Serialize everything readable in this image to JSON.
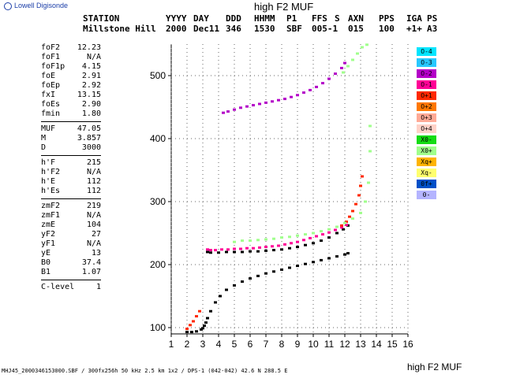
{
  "logo": {
    "text": "Lowell Digisonde",
    "icon": "globe-icon"
  },
  "top_title": "high F2 MUF",
  "header": {
    "columns": [
      {
        "label": "STATION",
        "value": "Millstone Hill"
      },
      {
        "label": "YYYY",
        "value": "2000"
      },
      {
        "label": "DAY",
        "value": "Dec11"
      },
      {
        "label": "DDD",
        "value": "346"
      },
      {
        "label": "HHMM",
        "value": "1530"
      },
      {
        "label": "P1",
        "value": "SBF"
      },
      {
        "label": "FFS",
        "value": "005-1"
      },
      {
        "label": "S",
        "value": ""
      },
      {
        "label": "AXN",
        "value": "015"
      },
      {
        "label": "PPS",
        "value": "100"
      },
      {
        "label": "IGA",
        "value": "+1+"
      },
      {
        "label": "PS",
        "value": "A3"
      }
    ]
  },
  "params": [
    {
      "label": "foF2",
      "value": "12.23"
    },
    {
      "label": "foF1",
      "value": "N/A"
    },
    {
      "label": "foF1p",
      "value": "4.15"
    },
    {
      "label": "foE",
      "value": "2.91"
    },
    {
      "label": "foEp",
      "value": "2.92"
    },
    {
      "label": "fxI",
      "value": "13.15"
    },
    {
      "label": "foEs",
      "value": "2.90"
    },
    {
      "label": "fmin",
      "value": "1.80"
    },
    {
      "sep": true
    },
    {
      "label": "MUF",
      "value": "47.05"
    },
    {
      "label": "M",
      "value": "3.857"
    },
    {
      "label": "D",
      "value": "3000"
    },
    {
      "sep": true
    },
    {
      "label": "h'F",
      "value": "215"
    },
    {
      "label": "h'F2",
      "value": "N/A"
    },
    {
      "label": "h'E",
      "value": "112"
    },
    {
      "label": "h'Es",
      "value": "112"
    },
    {
      "sep": true
    },
    {
      "label": "zmF2",
      "value": "219"
    },
    {
      "label": "zmF1",
      "value": "N/A"
    },
    {
      "label": "zmE",
      "value": "104"
    },
    {
      "label": "yF2",
      "value": "27"
    },
    {
      "label": "yF1",
      "value": "N/A"
    },
    {
      "label": "yE",
      "value": "13"
    },
    {
      "label": "B0",
      "value": "37.4"
    },
    {
      "label": "B1",
      "value": "1.07"
    },
    {
      "sep": true
    },
    {
      "label": "C-level",
      "value": "1"
    }
  ],
  "legend": [
    {
      "label": "O-4",
      "color": "#00e5ff"
    },
    {
      "label": "O-3",
      "color": "#28c8ff"
    },
    {
      "label": "O-2",
      "color": "#b400c8"
    },
    {
      "label": "O-1",
      "color": "#ff0096"
    },
    {
      "label": "O+1",
      "color": "#ff2800"
    },
    {
      "label": "O+2",
      "color": "#ff7800"
    },
    {
      "label": "O+3",
      "color": "#ffaa96"
    },
    {
      "label": "O+4",
      "color": "#ffd2c8"
    },
    {
      "label": "X0-",
      "color": "#14dc14"
    },
    {
      "label": "X0+",
      "color": "#a0ff8c"
    },
    {
      "label": "Xq+",
      "color": "#ffb400"
    },
    {
      "label": "Xq-",
      "color": "#ffff6e"
    },
    {
      "label": "0f+",
      "color": "#0050c8"
    },
    {
      "label": "0-",
      "color": "#b4b4ff"
    }
  ],
  "chart_data": {
    "type": "scatter",
    "title": "high F2 MUF",
    "xlabel": "",
    "ylabel": "",
    "xlim": [
      1,
      16
    ],
    "ylim": [
      90,
      550
    ],
    "x_ticks": [
      "1",
      "2",
      "3",
      "4",
      "5",
      "6",
      "7",
      "8",
      "9",
      "10",
      "11",
      "12",
      "13",
      "14",
      "15",
      "16"
    ],
    "y_ticks": [
      "100",
      "200",
      "300",
      "400",
      "500"
    ],
    "grid": true,
    "series": [
      {
        "name": "",
        "color": "#000000",
        "x": [
          2.0,
          2.3,
          2.6,
          2.9,
          3.0,
          3.1,
          3.2,
          3.3,
          3.5,
          3.8,
          4.1,
          4.5,
          5.0,
          5.5,
          6.0,
          6.5,
          7.0,
          7.5,
          8.0,
          8.5,
          9.0,
          9.5,
          10.0,
          10.5,
          11.0,
          11.5,
          12.0,
          12.2
        ],
        "y": [
          93,
          93,
          94,
          97,
          99,
          103,
          108,
          115,
          126,
          140,
          150,
          160,
          167,
          173,
          178,
          182,
          186,
          189,
          192,
          195,
          198,
          201,
          204,
          207,
          210,
          213,
          216,
          218
        ]
      },
      {
        "name": "",
        "color": "#000000",
        "x": [
          3.3,
          3.5,
          4.0,
          4.5,
          5.0,
          5.5,
          6.0,
          6.5,
          7.0,
          7.5,
          8.0,
          8.5,
          9.0,
          9.5,
          10.0,
          10.5,
          11.0,
          11.5,
          11.9,
          12.2
        ],
        "y": [
          220,
          219,
          219,
          220,
          220,
          220,
          221,
          221,
          222,
          223,
          224,
          226,
          228,
          231,
          234,
          238,
          243,
          250,
          256,
          262
        ]
      },
      {
        "name": "O-1",
        "color": "#ff0096",
        "x": [
          3.3,
          3.5,
          3.8,
          4.2,
          4.6,
          5.0,
          5.4,
          5.8,
          6.2,
          6.6,
          7.0,
          7.4,
          7.8,
          8.2,
          8.6,
          9.0,
          9.4,
          9.8,
          10.2,
          10.6,
          11.0,
          11.4,
          11.8,
          12.1
        ],
        "y": [
          224,
          223,
          223,
          224,
          224,
          225,
          225,
          226,
          226,
          227,
          228,
          229,
          230,
          232,
          234,
          236,
          239,
          242,
          245,
          248,
          251,
          255,
          259,
          263
        ]
      },
      {
        "name": "O+1",
        "color": "#ff2800",
        "x": [
          11.8,
          12.1,
          12.3,
          12.5,
          12.7,
          12.9,
          13.0,
          13.1
        ],
        "y": [
          262,
          268,
          276,
          285,
          296,
          310,
          325,
          340
        ]
      },
      {
        "name": "X0+",
        "color": "#a0ff8c",
        "x": [
          5.0,
          5.5,
          6.0,
          6.5,
          7.0,
          7.5,
          8.0,
          8.5,
          9.0,
          9.5,
          10.0,
          10.5,
          11.0,
          11.5,
          12.0,
          12.5,
          13.0,
          13.3,
          13.5,
          13.6,
          13.6
        ],
        "y": [
          236,
          238,
          238,
          239,
          240,
          241,
          243,
          244,
          246,
          248,
          250,
          253,
          256,
          260,
          266,
          273,
          282,
          300,
          330,
          380,
          420
        ]
      },
      {
        "name": "O-2",
        "color": "#b400c8",
        "x": [
          4.3,
          4.6,
          5.0,
          5.4,
          5.8,
          6.2,
          6.6,
          7.0,
          7.4,
          7.8,
          8.2,
          8.6,
          9.0,
          9.4,
          9.8,
          10.2,
          10.6,
          11.0,
          11.4,
          11.8,
          12.0
        ],
        "y": [
          441,
          443,
          446,
          449,
          451,
          453,
          455,
          457,
          459,
          461,
          463,
          466,
          469,
          473,
          477,
          482,
          488,
          495,
          503,
          512,
          520
        ]
      },
      {
        "name": "X0+",
        "color": "#a0ff8c",
        "x": [
          11.9,
          12.2,
          12.5,
          12.8,
          13.1,
          13.4
        ],
        "y": [
          505,
          515,
          525,
          535,
          545,
          549
        ]
      },
      {
        "name": "O+1",
        "color": "#ff2800",
        "x": [
          2.0,
          2.2,
          2.4,
          2.6,
          2.8
        ],
        "y": [
          98,
          104,
          110,
          118,
          126
        ]
      }
    ]
  },
  "footer": {
    "left": "MHJ45_2000346153000.SBF / 300fx256h 50 kHz 2.5 km 1x2 / DPS-1 (042-042) 42.6 N 288.5 E",
    "right": "high F2 MUF"
  }
}
